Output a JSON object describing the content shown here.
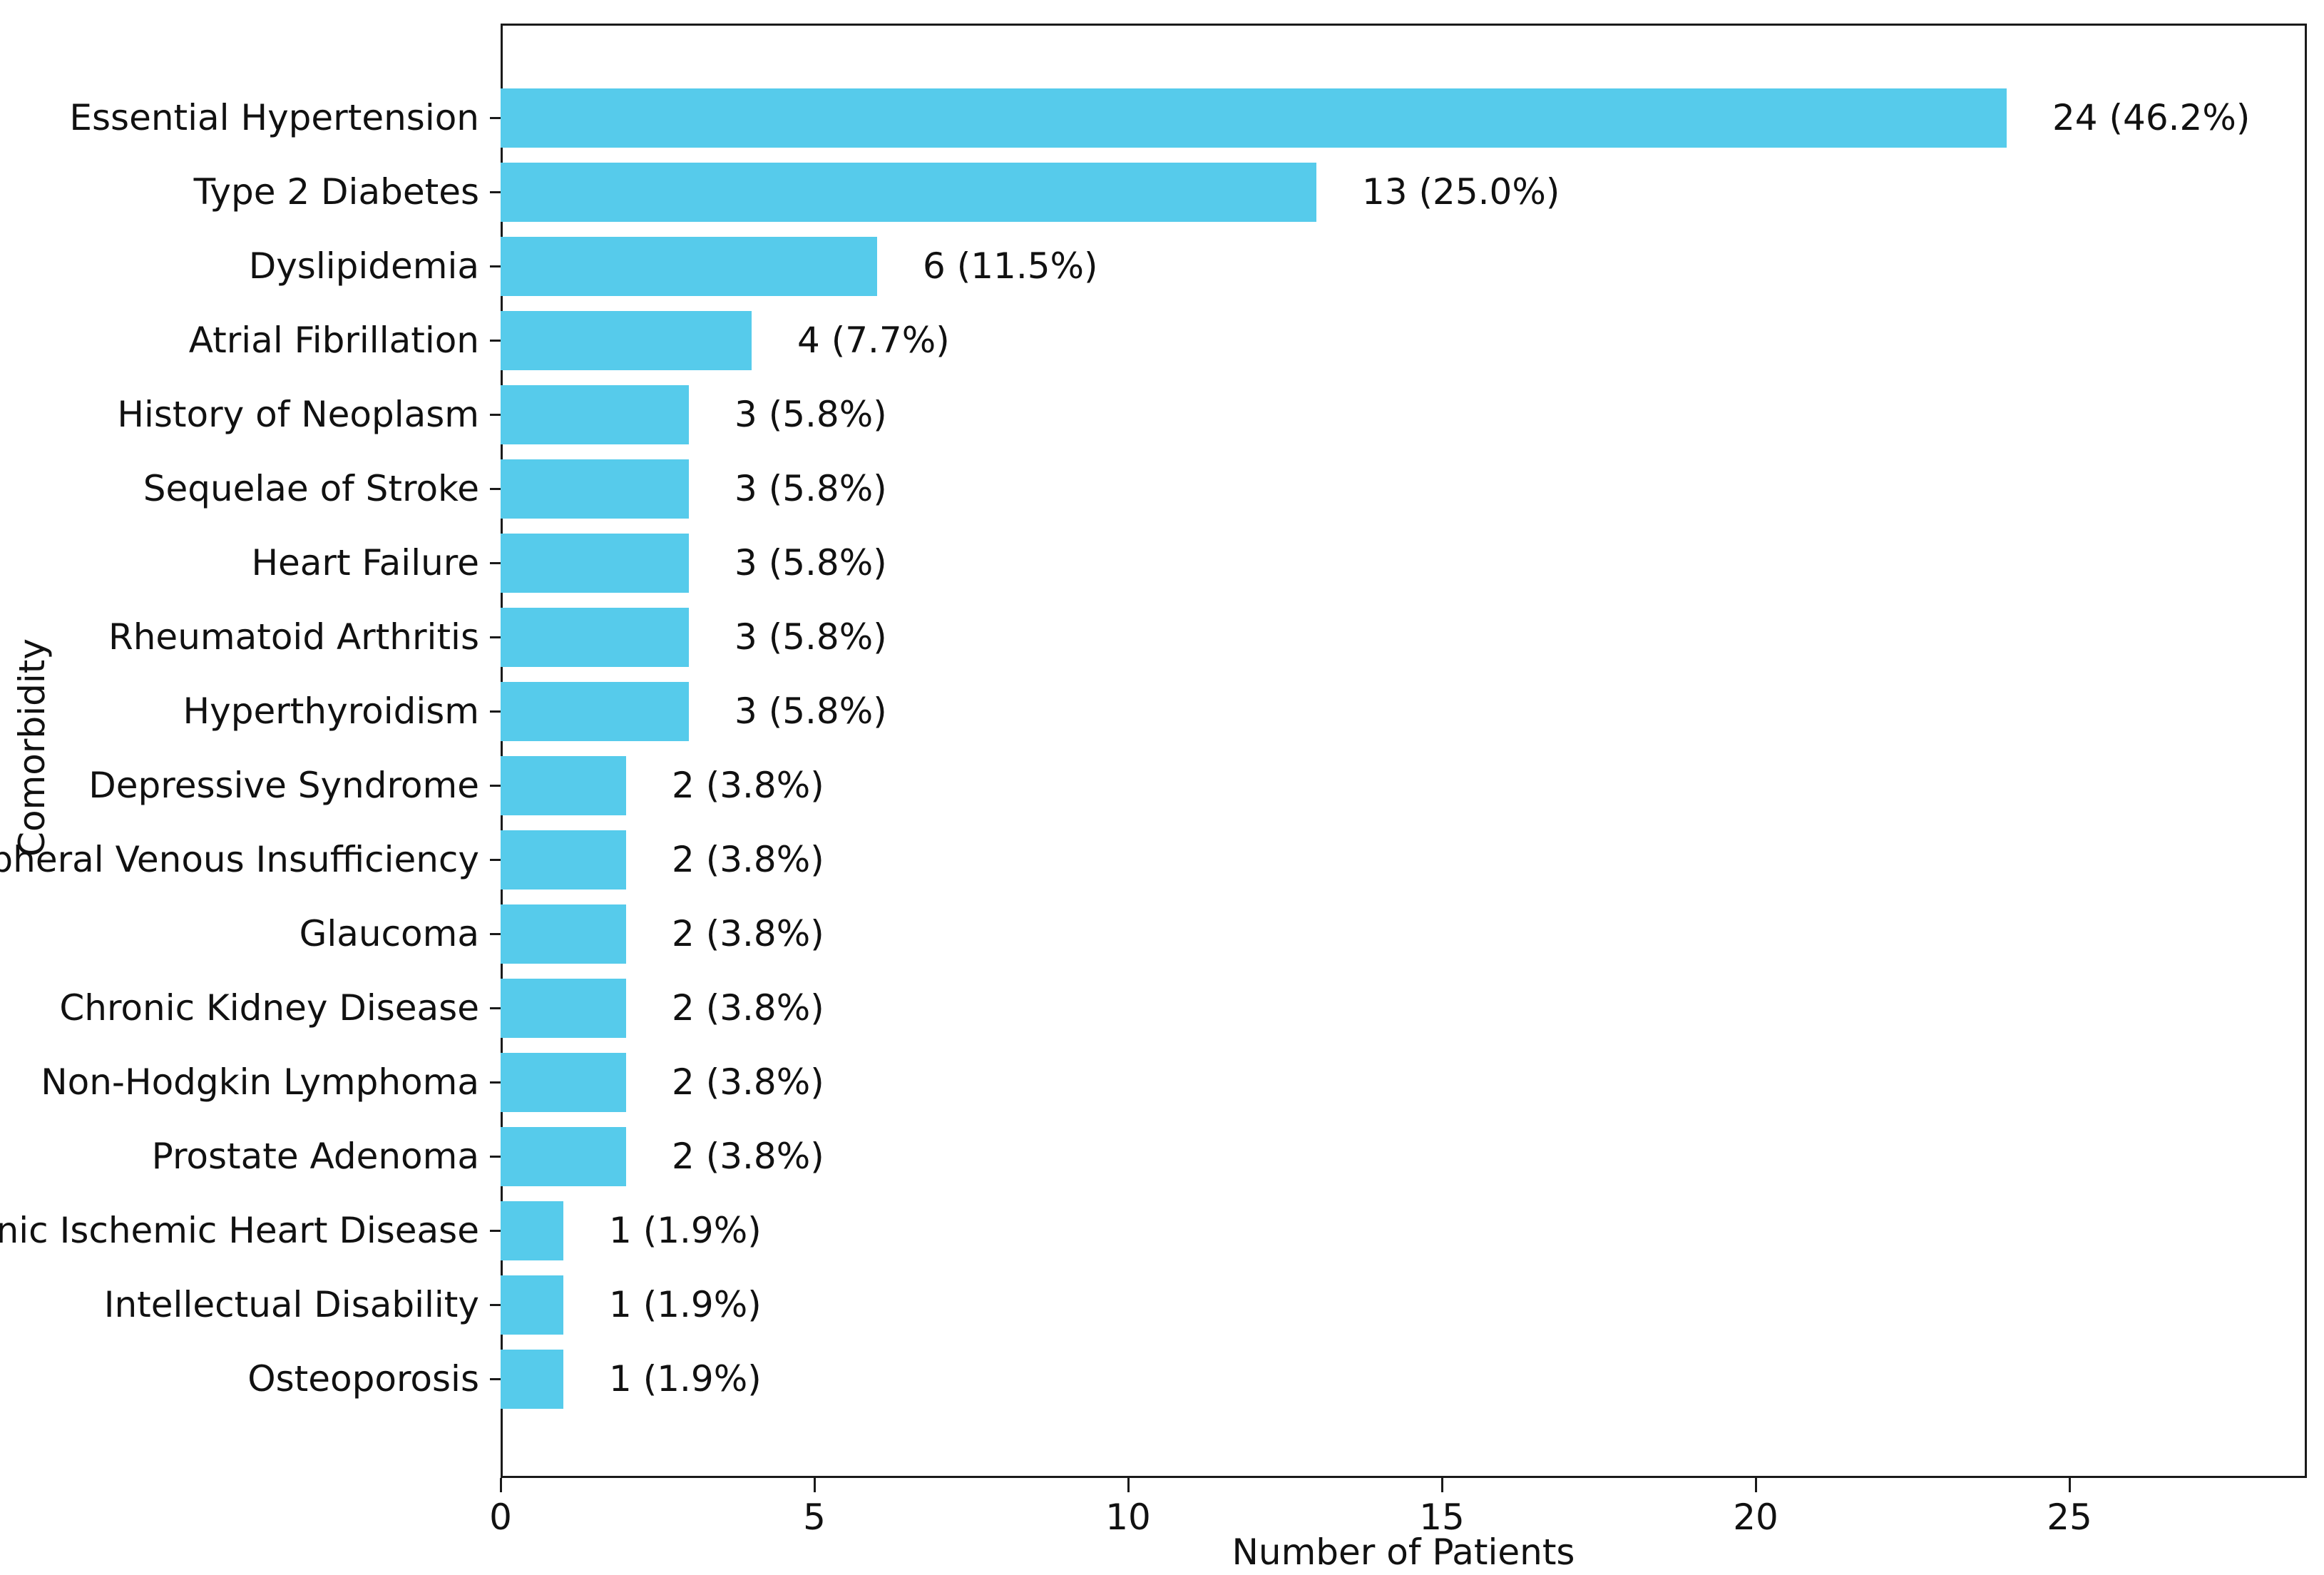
{
  "chart_data": {
    "type": "bar",
    "orientation": "horizontal",
    "xlabel": "Number of Patients",
    "ylabel": "Comorbidity",
    "categories": [
      "Essential Hypertension",
      "Type 2 Diabetes",
      "Dyslipidemia",
      "Atrial Fibrillation",
      "History of Neoplasm",
      "Sequelae of Stroke",
      "Heart Failure",
      "Rheumatoid Arthritis",
      "Hyperthyroidism",
      "Depressive Syndrome",
      "Peripheral Venous Insufficiency",
      "Glaucoma",
      "Chronic Kidney Disease",
      "Non-Hodgkin Lymphoma",
      "Prostate Adenoma",
      "Chronic Ischemic Heart Disease",
      "Intellectual Disability",
      "Osteoporosis"
    ],
    "values": [
      24,
      13,
      6,
      4,
      3,
      3,
      3,
      3,
      3,
      2,
      2,
      2,
      2,
      2,
      2,
      1,
      1,
      1
    ],
    "bar_labels": [
      "24 (46.2%)",
      "13 (25.0%)",
      "6 (11.5%)",
      "4 (7.7%)",
      "3 (5.8%)",
      "3 (5.8%)",
      "3 (5.8%)",
      "3 (5.8%)",
      "3 (5.8%)",
      "2 (3.8%)",
      "2 (3.8%)",
      "2 (3.8%)",
      "2 (3.8%)",
      "2 (3.8%)",
      "2 (3.8%)",
      "1 (1.9%)",
      "1 (1.9%)",
      "1 (1.9%)"
    ],
    "xticks": [
      0,
      5,
      10,
      15,
      20,
      25
    ],
    "xlim": [
      0,
      28.8
    ],
    "grid": false,
    "legend": null,
    "bar_color": "#56CBEB",
    "axis_color": "#1a1a1a",
    "text_color": "#111111"
  }
}
